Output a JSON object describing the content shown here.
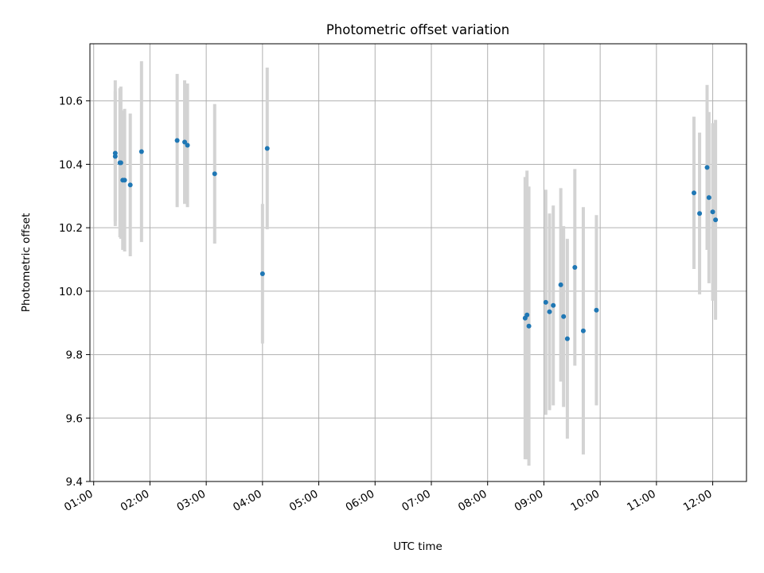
{
  "chart_data": {
    "type": "scatter",
    "title": "Photometric offset variation",
    "xlabel": "UTC time",
    "ylabel": "Photometric offset",
    "xlim": [
      "00:56",
      "12:36"
    ],
    "ylim": [
      9.4,
      10.78
    ],
    "grid": true,
    "x_ticks": [
      "01:00",
      "02:00",
      "03:00",
      "04:00",
      "05:00",
      "06:00",
      "07:00",
      "08:00",
      "09:00",
      "10:00",
      "11:00",
      "12:00"
    ],
    "y_ticks": [
      "9.4",
      "9.6",
      "9.8",
      "10.0",
      "10.2",
      "10.4",
      "10.6"
    ],
    "colors": {
      "marker": "#1f77b4",
      "errorbar": "#d3d3d3",
      "grid": "#b0b0b0"
    },
    "points": [
      {
        "x": "01:23",
        "y": 10.425,
        "err": 0.205
      },
      {
        "x": "01:23",
        "y": 10.435,
        "err": 0.23
      },
      {
        "x": "01:28",
        "y": 10.405,
        "err": 0.235
      },
      {
        "x": "01:29",
        "y": 10.405,
        "err": 0.24
      },
      {
        "x": "01:31",
        "y": 10.35,
        "err": 0.22
      },
      {
        "x": "01:33",
        "y": 10.35,
        "err": 0.225
      },
      {
        "x": "01:39",
        "y": 10.335,
        "err": 0.225
      },
      {
        "x": "01:51",
        "y": 10.44,
        "err": 0.285
      },
      {
        "x": "02:29",
        "y": 10.475,
        "err": 0.21
      },
      {
        "x": "02:37",
        "y": 10.47,
        "err": 0.195
      },
      {
        "x": "02:40",
        "y": 10.46,
        "err": 0.195
      },
      {
        "x": "03:09",
        "y": 10.37,
        "err": 0.22
      },
      {
        "x": "04:00",
        "y": 10.055,
        "err": 0.22
      },
      {
        "x": "04:05",
        "y": 10.45,
        "err": 0.255
      },
      {
        "x": "08:40",
        "y": 9.915,
        "err": 0.445
      },
      {
        "x": "08:42",
        "y": 9.925,
        "err": 0.455
      },
      {
        "x": "08:44",
        "y": 9.89,
        "err": 0.44
      },
      {
        "x": "09:02",
        "y": 9.965,
        "err": 0.355
      },
      {
        "x": "09:06",
        "y": 9.935,
        "err": 0.31
      },
      {
        "x": "09:10",
        "y": 9.955,
        "err": 0.315
      },
      {
        "x": "09:18",
        "y": 10.02,
        "err": 0.305
      },
      {
        "x": "09:21",
        "y": 9.92,
        "err": 0.285
      },
      {
        "x": "09:25",
        "y": 9.85,
        "err": 0.315
      },
      {
        "x": "09:33",
        "y": 10.075,
        "err": 0.31
      },
      {
        "x": "09:42",
        "y": 9.875,
        "err": 0.39
      },
      {
        "x": "09:56",
        "y": 9.94,
        "err": 0.3
      },
      {
        "x": "11:40",
        "y": 10.31,
        "err": 0.24
      },
      {
        "x": "11:46",
        "y": 10.245,
        "err": 0.255
      },
      {
        "x": "11:54",
        "y": 10.39,
        "err": 0.26
      },
      {
        "x": "11:56",
        "y": 10.295,
        "err": 0.27
      },
      {
        "x": "12:00",
        "y": 10.25,
        "err": 0.28
      },
      {
        "x": "12:03",
        "y": 10.225,
        "err": 0.315
      }
    ]
  }
}
